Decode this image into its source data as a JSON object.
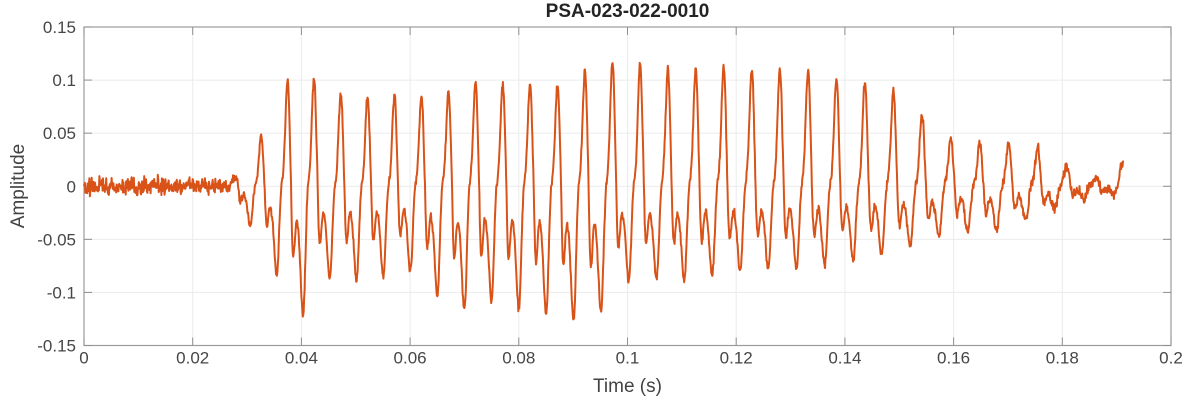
{
  "figure": {
    "title": "PSA-023-022-0010",
    "xlabel": "Time (s)",
    "ylabel": "Amplitude"
  },
  "chart_data": {
    "type": "line",
    "title": "PSA-023-022-0010",
    "xlabel": "Time (s)",
    "ylabel": "Amplitude",
    "xlim": [
      0,
      0.2
    ],
    "ylim": [
      -0.15,
      0.15
    ],
    "grid": true,
    "legend": "none",
    "background": "#FFFFFF",
    "line_color": "#D95319",
    "axis_color": "#9B9B9B",
    "tick_color": "#8F8F8F",
    "grid_color": "#EBEBEB",
    "tick_label_color": "#464646",
    "x_ticks": {
      "values": [
        0,
        0.02,
        0.04,
        0.06,
        0.08,
        0.1,
        0.12,
        0.14,
        0.16,
        0.18,
        0.2
      ],
      "labels": [
        "0",
        "0.02",
        "0.04",
        "0.06",
        "0.08",
        "0.1",
        "0.12",
        "0.14",
        "0.16",
        "0.18",
        "0.2"
      ]
    },
    "y_ticks": {
      "values": [
        -0.15,
        -0.1,
        -0.05,
        0,
        0.05,
        0.1,
        0.15
      ],
      "labels": [
        "-0.15",
        "-0.1",
        "-0.05",
        "0",
        "0.05",
        "0.1",
        "0.15"
      ]
    },
    "series": [
      {
        "name": "PSA-023-022-0010 waveform",
        "description": "Low-amplitude noise (about +/-0.01) from 0 to 0.027 s, quasi-periodic ~195 Hz voiced burst rising to peaks ~+0.113/-0.123 near 0.04 s, sustained ~+0.11/-0.12 through 0.10 s, positive peaks ~0.11 with shallower troughs ~-0.08 through 0.145 s, decaying after 0.15 s into low noise, signal ends at 0.191 s",
        "synthesis": {
          "sample_rate": 12000,
          "t_start": 0,
          "t_end": 0.1912,
          "voiced_start": 0.0265,
          "f0_start_hz": 206,
          "f0_slope_hz_per_s": -130,
          "harmonics": [
            [
              1,
              1.0,
              0.0
            ],
            [
              2,
              0.5,
              -1.2
            ],
            [
              3,
              0.33,
              2.4
            ],
            [
              4,
              0.12,
              1.0
            ]
          ],
          "envelope_pos": [
            [
              0.0265,
              0.0
            ],
            [
              0.0293,
              0.022
            ],
            [
              0.0313,
              0.035
            ],
            [
              0.0333,
              0.056
            ],
            [
              0.0353,
              0.072
            ],
            [
              0.0373,
              0.1
            ],
            [
              0.0393,
              0.106
            ],
            [
              0.0413,
              0.113
            ],
            [
              0.0437,
              0.086
            ],
            [
              0.046,
              0.088
            ],
            [
              0.051,
              0.084
            ],
            [
              0.056,
              0.085
            ],
            [
              0.061,
              0.085
            ],
            [
              0.066,
              0.086
            ],
            [
              0.071,
              0.098
            ],
            [
              0.076,
              0.095
            ],
            [
              0.081,
              0.097
            ],
            [
              0.086,
              0.092
            ],
            [
              0.091,
              0.106
            ],
            [
              0.096,
              0.117
            ],
            [
              0.102,
              0.116
            ],
            [
              0.107,
              0.111
            ],
            [
              0.113,
              0.112
            ],
            [
              0.118,
              0.113
            ],
            [
              0.123,
              0.11
            ],
            [
              0.128,
              0.11
            ],
            [
              0.133,
              0.11
            ],
            [
              0.139,
              0.1
            ],
            [
              0.1445,
              0.0985
            ],
            [
              0.15,
              0.088
            ],
            [
              0.1545,
              0.066
            ],
            [
              0.158,
              0.05
            ],
            [
              0.1615,
              0.037
            ],
            [
              0.1655,
              0.042
            ],
            [
              0.17,
              0.042
            ],
            [
              0.1755,
              0.036
            ],
            [
              0.18,
              0.022
            ],
            [
              0.184,
              0.012
            ],
            [
              0.188,
              0.01
            ],
            [
              0.1905,
              0.012
            ]
          ],
          "envelope_neg": [
            [
              0.0265,
              0.0
            ],
            [
              0.0293,
              0.028
            ],
            [
              0.0312,
              0.041
            ],
            [
              0.0335,
              0.06
            ],
            [
              0.0358,
              0.088
            ],
            [
              0.038,
              0.105
            ],
            [
              0.04,
              0.123
            ],
            [
              0.0423,
              0.1
            ],
            [
              0.0445,
              0.087
            ],
            [
              0.05,
              0.088
            ],
            [
              0.055,
              0.085
            ],
            [
              0.059,
              0.075
            ],
            [
              0.064,
              0.1
            ],
            [
              0.07,
              0.118
            ],
            [
              0.074,
              0.106
            ],
            [
              0.08,
              0.115
            ],
            [
              0.086,
              0.121
            ],
            [
              0.091,
              0.126
            ],
            [
              0.094,
              0.126
            ],
            [
              0.099,
              0.09
            ],
            [
              0.104,
              0.087
            ],
            [
              0.109,
              0.091
            ],
            [
              0.113,
              0.085
            ],
            [
              0.118,
              0.082
            ],
            [
              0.123,
              0.078
            ],
            [
              0.128,
              0.078
            ],
            [
              0.133,
              0.077
            ],
            [
              0.139,
              0.072
            ],
            [
              0.1445,
              0.068
            ],
            [
              0.15,
              0.061
            ],
            [
              0.1545,
              0.052
            ],
            [
              0.158,
              0.046
            ],
            [
              0.1615,
              0.042
            ],
            [
              0.1655,
              0.044
            ],
            [
              0.17,
              0.038
            ],
            [
              0.1755,
              0.03
            ],
            [
              0.18,
              0.018
            ],
            [
              0.184,
              0.011
            ],
            [
              0.188,
              0.008
            ],
            [
              0.1905,
              0.008
            ]
          ],
          "noise_envelope": [
            [
              0,
              0.009
            ],
            [
              0.002,
              0.014
            ],
            [
              0.003,
              0.01
            ],
            [
              0.0045,
              0.012
            ],
            [
              0.006,
              0.008
            ],
            [
              0.008,
              0.0085
            ],
            [
              0.01,
              0.01
            ],
            [
              0.012,
              0.012
            ],
            [
              0.014,
              0.013
            ],
            [
              0.015,
              0.009
            ],
            [
              0.017,
              0.0085
            ],
            [
              0.019,
              0.01
            ],
            [
              0.021,
              0.009
            ],
            [
              0.023,
              0.0085
            ],
            [
              0.025,
              0.008
            ],
            [
              0.027,
              0.006
            ],
            [
              0.03,
              0.0042
            ],
            [
              0.06,
              0.0042
            ],
            [
              0.12,
              0.0042
            ],
            [
              0.15,
              0.0045
            ],
            [
              0.165,
              0.005
            ],
            [
              0.172,
              0.0055
            ],
            [
              0.178,
              0.0065
            ],
            [
              0.183,
              0.006
            ],
            [
              0.187,
              0.0055
            ],
            [
              0.1912,
              0.005
            ]
          ],
          "noise_seed": 20231,
          "end_tick": {
            "t": 0.191,
            "amp": 0.018,
            "width": 0.0006
          }
        }
      }
    ]
  }
}
